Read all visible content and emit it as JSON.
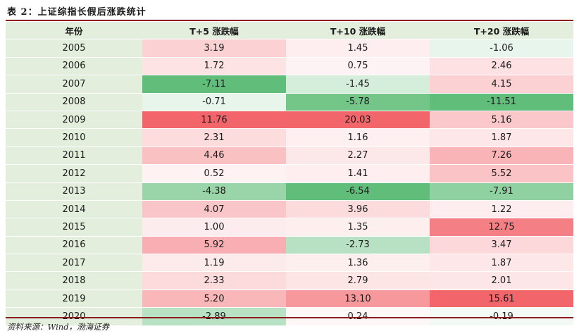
{
  "title": "表 2：上证综指长假后涨跌统计",
  "headers": [
    "年份",
    "T+5 涨跌幅",
    "T+10 涨跌幅",
    "T+20 涨跌幅"
  ],
  "rows": [
    {
      "year": "2005",
      "t5": "3.19",
      "t10": "1.45",
      "t20": "-1.06"
    },
    {
      "year": "2006",
      "t5": "1.72",
      "t10": "0.75",
      "t20": "2.46"
    },
    {
      "year": "2007",
      "t5": "-7.11",
      "t10": "-1.45",
      "t20": "4.15"
    },
    {
      "year": "2008",
      "t5": "-0.71",
      "t10": "-5.78",
      "t20": "-11.51"
    },
    {
      "year": "2009",
      "t5": "11.76",
      "t10": "20.03",
      "t20": "5.16"
    },
    {
      "year": "2010",
      "t5": "2.31",
      "t10": "1.16",
      "t20": "1.87"
    },
    {
      "year": "2011",
      "t5": "4.46",
      "t10": "2.27",
      "t20": "7.26"
    },
    {
      "year": "2012",
      "t5": "0.52",
      "t10": "1.41",
      "t20": "5.52"
    },
    {
      "year": "2013",
      "t5": "-4.38",
      "t10": "-6.54",
      "t20": "-7.91"
    },
    {
      "year": "2014",
      "t5": "4.07",
      "t10": "3.96",
      "t20": "1.22"
    },
    {
      "year": "2015",
      "t5": "1.00",
      "t10": "1.35",
      "t20": "12.75"
    },
    {
      "year": "2016",
      "t5": "5.92",
      "t10": "-2.73",
      "t20": "3.47"
    },
    {
      "year": "2017",
      "t5": "1.19",
      "t10": "1.36",
      "t20": "1.87"
    },
    {
      "year": "2018",
      "t5": "2.33",
      "t10": "2.79",
      "t20": "2.01"
    },
    {
      "year": "2019",
      "t5": "5.20",
      "t10": "13.10",
      "t20": "15.61"
    },
    {
      "year": "2020",
      "t5": "-2.89",
      "t10": "0.24",
      "t20": "-0.19"
    }
  ],
  "source": "资料来源：Wind，渤海证券",
  "colors": {
    "header_bg": "#e4eedd",
    "year_bg": "#e4eedd",
    "positive_max": "#f2636a",
    "negative_max": "#63be7b",
    "rule": "#8a1c1c"
  }
}
